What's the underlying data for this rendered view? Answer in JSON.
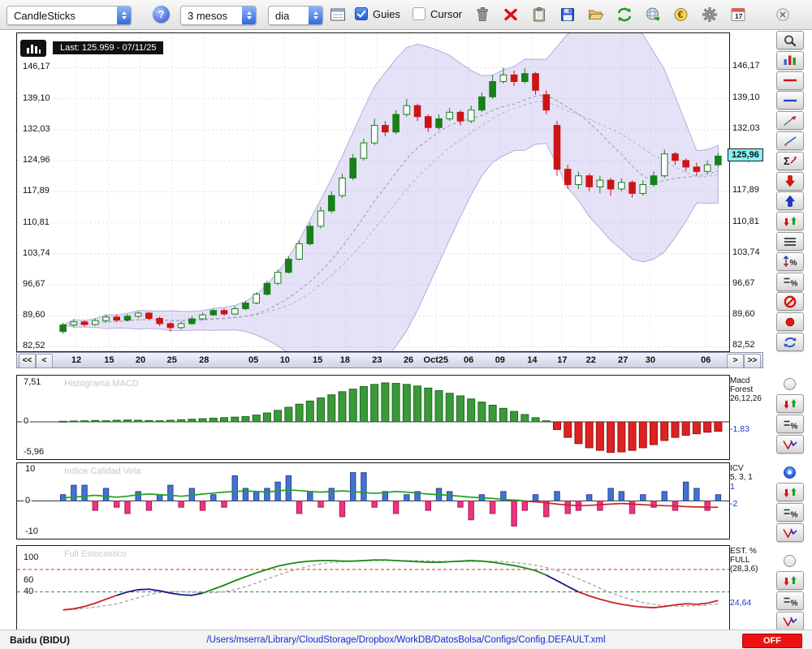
{
  "toolbar": {
    "chart_type_label": "CandleSticks",
    "help_label": "?",
    "period_label": "3 mesos",
    "timeframe_label": "dia",
    "guides_label": "Guies",
    "guides_checked": true,
    "cursor_label": "Cursor",
    "cursor_checked": false,
    "calendar_day": "17",
    "table_icon": "data-window-icon",
    "icons": [
      "trash-icon",
      "delete-x-icon",
      "clipboard-icon",
      "save-icon",
      "open-folder-icon",
      "sync-icon",
      "globe-download-icon",
      "euro-icon",
      "gear-icon",
      "calendar-icon"
    ],
    "window_icon": "window-close-icon"
  },
  "chart": {
    "last_label": "Last: 125.959 - 07/11/25",
    "price_tag": "125,96",
    "y_labels": [
      "146,17",
      "139,10",
      "132,03",
      "124,96",
      "117,89",
      "110,81",
      "103,74",
      "96,67",
      "89,60",
      "82,52"
    ]
  },
  "xaxis": {
    "nav": [
      "<<",
      "<",
      ">",
      ">>"
    ]
  },
  "panels": {
    "macd": {
      "title": "Histograma MACD",
      "y_labels": [
        "7,51",
        "0",
        "-5,96"
      ],
      "right_lines": [
        "Macd",
        "Forest",
        "26,12,26"
      ],
      "right_value": "-1,83"
    },
    "icv": {
      "title": "Indice Calidad Vela",
      "y_labels": [
        "10",
        "0",
        "-10"
      ],
      "right_lines": [
        "ICV",
        "5, 3, 1"
      ],
      "right_value1": "1",
      "right_value2": "-2"
    },
    "stoch": {
      "title": "Full Estocastico",
      "y_labels": [
        "100",
        "60",
        "40"
      ],
      "right_lines": [
        "EST. %",
        "FULL",
        "(28,3,6)"
      ],
      "right_value": "24,64"
    }
  },
  "statusbar": {
    "symbol": "Baidu (BIDU)",
    "path": "/Users/mserra/Library/CloudStorage/Dropbox/WorkDB/DatosBolsa/Configs/Config.DEFAULT.xml",
    "off_label": "OFF"
  },
  "sidebar": {
    "tools": [
      "zoom-icon",
      "chart-style-icon",
      "red-hline-icon",
      "blue-hline-icon",
      "trend-arrow-icon",
      "trend-pencil-icon",
      "sigma-icon",
      "red-down-arrow-icon",
      "blue-up-arrow-icon",
      "red-green-arrows-icon",
      "hlines-icon",
      "arrows-percent-icon",
      "lines-percent-icon",
      "no-entry-icon",
      "record-icon",
      "refresh-icon"
    ],
    "indicator_groups": [
      {
        "name": "macd",
        "selected": false,
        "tools": [
          "red-green-arrows-icon",
          "lines-percent-icon",
          "wave-icon"
        ]
      },
      {
        "name": "icv",
        "selected": true,
        "tools": [
          "red-green-arrows-icon",
          "lines-percent-icon",
          "wave-icon"
        ]
      },
      {
        "name": "stoch",
        "selected": false,
        "tools": [
          "red-green-arrows-icon",
          "lines-percent-icon",
          "wave-icon"
        ]
      }
    ]
  },
  "chart_data": {
    "type": "candlestick+indicators",
    "title": "Baidu (BIDU) daily candles, 3 months",
    "price": {
      "min": 81.5,
      "max": 154.0,
      "last": 125.959,
      "gridlines": [
        146.17,
        139.1,
        132.03,
        124.96,
        117.89,
        110.81,
        103.74,
        96.67,
        89.6,
        82.52
      ]
    },
    "bollinger": {
      "window": 14,
      "mult": 2.4
    },
    "sma_window": 10,
    "candles": [
      [
        86.0,
        88.0,
        85.5,
        87.5,
        "g"
      ],
      [
        87.5,
        88.8,
        87.0,
        88.2,
        "G"
      ],
      [
        88.2,
        88.6,
        87.2,
        87.6,
        "r"
      ],
      [
        87.6,
        89.0,
        87.3,
        88.5,
        "G"
      ],
      [
        88.5,
        89.8,
        88.0,
        89.3,
        "G"
      ],
      [
        89.3,
        89.9,
        88.2,
        88.6,
        "r"
      ],
      [
        88.6,
        90.0,
        88.3,
        89.5,
        "g"
      ],
      [
        89.5,
        90.6,
        89.1,
        90.2,
        "G"
      ],
      [
        90.2,
        90.5,
        88.6,
        89.0,
        "r"
      ],
      [
        89.0,
        89.4,
        87.2,
        87.8,
        "r"
      ],
      [
        87.8,
        88.2,
        86.0,
        86.9,
        "r"
      ],
      [
        86.9,
        88.3,
        86.5,
        87.8,
        "G"
      ],
      [
        87.8,
        89.5,
        87.5,
        88.9,
        "g"
      ],
      [
        88.9,
        90.3,
        88.6,
        89.8,
        "G"
      ],
      [
        89.8,
        91.2,
        89.5,
        90.8,
        "g"
      ],
      [
        90.8,
        91.3,
        89.6,
        90.0,
        "r"
      ],
      [
        90.0,
        91.8,
        89.8,
        91.2,
        "G"
      ],
      [
        91.2,
        93.0,
        90.9,
        92.5,
        "g"
      ],
      [
        92.5,
        95.0,
        92.2,
        94.5,
        "G"
      ],
      [
        94.5,
        97.6,
        94.2,
        97.0,
        "g"
      ],
      [
        97.0,
        100.2,
        96.6,
        99.5,
        "G"
      ],
      [
        99.5,
        103.2,
        99.2,
        102.5,
        "g"
      ],
      [
        102.5,
        106.8,
        102.2,
        106.0,
        "G"
      ],
      [
        106.0,
        110.8,
        105.6,
        110.0,
        "g"
      ],
      [
        110.0,
        114.4,
        109.5,
        113.5,
        "G"
      ],
      [
        113.5,
        118.0,
        113.0,
        117.0,
        "g"
      ],
      [
        117.0,
        122.0,
        116.5,
        121.0,
        "G"
      ],
      [
        121.0,
        126.5,
        120.5,
        125.5,
        "g"
      ],
      [
        125.5,
        130.0,
        125.0,
        129.0,
        "G"
      ],
      [
        129.0,
        134.5,
        128.5,
        133.0,
        "G"
      ],
      [
        133.0,
        134.0,
        130.5,
        131.5,
        "r"
      ],
      [
        131.5,
        136.5,
        131.0,
        135.5,
        "g"
      ],
      [
        135.5,
        139.0,
        135.0,
        137.5,
        "G"
      ],
      [
        137.5,
        138.0,
        134.0,
        135.0,
        "r"
      ],
      [
        135.0,
        135.5,
        131.5,
        132.5,
        "r"
      ],
      [
        132.5,
        135.5,
        132.0,
        134.5,
        "g"
      ],
      [
        134.5,
        137.0,
        134.0,
        136.0,
        "G"
      ],
      [
        136.0,
        136.5,
        133.0,
        134.0,
        "r"
      ],
      [
        134.0,
        137.5,
        133.5,
        136.5,
        "G"
      ],
      [
        136.5,
        140.5,
        136.0,
        139.5,
        "g"
      ],
      [
        139.5,
        144.5,
        139.0,
        143.0,
        "g"
      ],
      [
        143.0,
        146.2,
        142.5,
        144.5,
        "G"
      ],
      [
        144.5,
        145.5,
        142.0,
        143.0,
        "r"
      ],
      [
        143.0,
        146.0,
        142.5,
        144.8,
        "g"
      ],
      [
        144.8,
        145.2,
        140.0,
        141.0,
        "r"
      ],
      [
        140.0,
        141.0,
        135.5,
        136.5,
        "r"
      ],
      [
        133.0,
        134.0,
        121.5,
        123.0,
        "r"
      ],
      [
        123.0,
        124.0,
        118.5,
        119.5,
        "r"
      ],
      [
        119.5,
        122.5,
        118.5,
        121.5,
        "G"
      ],
      [
        121.5,
        122.0,
        118.0,
        119.0,
        "r"
      ],
      [
        119.0,
        121.5,
        117.5,
        120.5,
        "G"
      ],
      [
        120.5,
        121.0,
        117.0,
        118.5,
        "r"
      ],
      [
        118.5,
        121.0,
        118.0,
        120.0,
        "G"
      ],
      [
        120.0,
        120.5,
        116.5,
        117.5,
        "r"
      ],
      [
        117.5,
        120.5,
        117.0,
        119.5,
        "G"
      ],
      [
        119.5,
        122.5,
        119.0,
        121.5,
        "g"
      ],
      [
        121.5,
        127.5,
        121.0,
        126.5,
        "G"
      ],
      [
        126.5,
        127.0,
        124.0,
        125.0,
        "r"
      ],
      [
        125.0,
        125.5,
        122.5,
        123.5,
        "r"
      ],
      [
        123.5,
        124.5,
        121.5,
        122.5,
        "r"
      ],
      [
        122.5,
        125.0,
        122.0,
        124.0,
        "G"
      ],
      [
        124.0,
        126.8,
        123.5,
        126.0,
        "g"
      ]
    ],
    "xticks": [
      {
        "label": "12",
        "pos": 0.028
      },
      {
        "label": "15",
        "pos": 0.077
      },
      {
        "label": "20",
        "pos": 0.124
      },
      {
        "label": "25",
        "pos": 0.171
      },
      {
        "label": "28",
        "pos": 0.219
      },
      {
        "label": "05",
        "pos": 0.293
      },
      {
        "label": "10",
        "pos": 0.34
      },
      {
        "label": "15",
        "pos": 0.389
      },
      {
        "label": "18",
        "pos": 0.43
      },
      {
        "label": "23",
        "pos": 0.478
      },
      {
        "label": "26",
        "pos": 0.525
      },
      {
        "label": "Oct25",
        "pos": 0.566
      },
      {
        "label": "06",
        "pos": 0.615
      },
      {
        "label": "09",
        "pos": 0.662
      },
      {
        "label": "14",
        "pos": 0.71
      },
      {
        "label": "17",
        "pos": 0.755
      },
      {
        "label": "22",
        "pos": 0.798
      },
      {
        "label": "27",
        "pos": 0.846
      },
      {
        "label": "30",
        "pos": 0.887
      },
      {
        "label": "06",
        "pos": 0.97
      }
    ],
    "macd": {
      "range": [
        -7.2,
        8.9
      ],
      "axis": [
        7.51,
        0,
        -5.96
      ],
      "values": [
        0.1,
        0.15,
        0.2,
        0.25,
        0.2,
        0.3,
        0.35,
        0.3,
        0.25,
        0.2,
        0.3,
        0.4,
        0.5,
        0.6,
        0.7,
        0.8,
        0.9,
        1.0,
        1.3,
        1.7,
        2.2,
        2.8,
        3.4,
        4.0,
        4.6,
        5.2,
        5.8,
        6.3,
        6.8,
        7.2,
        7.5,
        7.4,
        7.2,
        6.9,
        6.5,
        6.0,
        5.5,
        5.0,
        4.4,
        3.8,
        3.2,
        2.6,
        2.0,
        1.4,
        0.8,
        0.2,
        -1.5,
        -3.0,
        -4.2,
        -5.0,
        -5.5,
        -5.9,
        -5.8,
        -5.5,
        -5.0,
        -4.4,
        -3.6,
        -3.0,
        -2.6,
        -2.3,
        -2.0,
        -1.83
      ]
    },
    "icv": {
      "range": [
        -12,
        12
      ],
      "axis": [
        10,
        0,
        -10
      ],
      "bars": [
        2,
        5,
        5,
        -3,
        4,
        -2,
        -4,
        3,
        -3,
        2,
        5,
        -2,
        4,
        -3,
        2,
        -2,
        8,
        4,
        3,
        4,
        6,
        8,
        -4,
        3,
        -2,
        4,
        -5,
        9,
        9,
        -2,
        3,
        -4,
        2,
        3,
        -3,
        4,
        3,
        -2,
        -6,
        2,
        -4,
        3,
        -8,
        -3,
        2,
        -5,
        3,
        -4,
        -3,
        2,
        -3,
        4,
        3,
        -4,
        2,
        -2,
        3,
        -3,
        6,
        4,
        -3,
        2
      ],
      "line": [
        1.0,
        1.2,
        1.5,
        1.8,
        1.5,
        1.2,
        1.5,
        2.0,
        2.2,
        2.0,
        1.8,
        1.5,
        1.8,
        2.2,
        2.5,
        2.8,
        3.0,
        3.2,
        3.0,
        2.8,
        3.2,
        3.5,
        3.3,
        3.0,
        2.8,
        3.0,
        3.2,
        3.0,
        2.7,
        2.4,
        2.7,
        3.0,
        2.8,
        2.5,
        2.2,
        2.0,
        1.8,
        1.5,
        1.2,
        1.0,
        0.8,
        0.5,
        0.3,
        0.0,
        -0.3,
        -0.6,
        -1.0,
        -1.3,
        -1.5,
        -1.4,
        -1.2,
        -1.0,
        -0.8,
        -1.0,
        -1.2,
        -1.4,
        -1.5,
        -1.6,
        -1.8,
        -1.9,
        -2.0,
        -2.0
      ]
    },
    "stoch": {
      "range": [
        -27,
        122
      ],
      "axis": [
        100,
        60,
        40
      ],
      "values": [
        8,
        10,
        14,
        20,
        27,
        34,
        40,
        44,
        45,
        42,
        38,
        35,
        34,
        38,
        45,
        52,
        60,
        67,
        74,
        80,
        86,
        90,
        93,
        95,
        96,
        96,
        95,
        95,
        96,
        97,
        97,
        96,
        95,
        94,
        93,
        93,
        94,
        95,
        96,
        95,
        93,
        90,
        87,
        83,
        78,
        70,
        60,
        50,
        40,
        33,
        27,
        22,
        18,
        15,
        13,
        12,
        14,
        17,
        19,
        18,
        20,
        24.64
      ],
      "signal_window": 6,
      "guides": [
        {
          "v": 80,
          "color": "#cc3333"
        },
        {
          "v": 40,
          "color": "#2a8a2a"
        }
      ],
      "segments": [
        {
          "from": 0,
          "to": 5,
          "color": "#cc2222"
        },
        {
          "from": 5,
          "to": 13,
          "color": "#1a1a8c"
        },
        {
          "from": 13,
          "to": 45,
          "color": "#1a8a1a"
        },
        {
          "from": 45,
          "to": 48,
          "color": "#1a1a8c"
        },
        {
          "from": 48,
          "to": 61,
          "color": "#cc2222"
        }
      ]
    }
  }
}
